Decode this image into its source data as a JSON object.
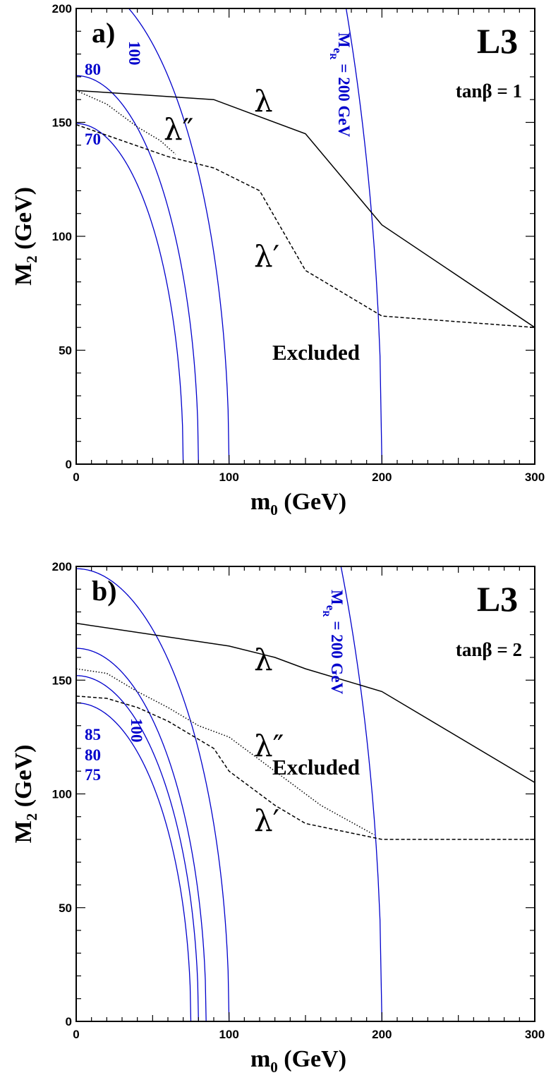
{
  "chart_data": [
    {
      "type": "line",
      "panel_tag": "a)",
      "experiment": "L3",
      "tanbeta_label": "tanβ = 1",
      "xlabel_main": "m",
      "xlabel_sub": "0",
      "xlabel_unit": " (GeV)",
      "ylabel_main": "M",
      "ylabel_sub": "2",
      "ylabel_unit": " (GeV)",
      "xlim": [
        0,
        300
      ],
      "ylim": [
        0,
        200
      ],
      "xticks": [
        0,
        100,
        200,
        300
      ],
      "yticks": [
        0,
        50,
        100,
        150,
        200
      ],
      "region_label": "Excluded",
      "limit_curves": [
        {
          "name": "λ",
          "style": "solid",
          "x": [
            0,
            90,
            150,
            200,
            300
          ],
          "y": [
            164,
            160,
            145,
            105,
            60
          ]
        },
        {
          "name": "λ′",
          "style": "dashed",
          "x": [
            0,
            30,
            60,
            90,
            120,
            150,
            200,
            300
          ],
          "y": [
            149,
            142,
            135,
            130,
            120,
            85,
            65,
            60
          ]
        },
        {
          "name": "λ″",
          "style": "dotted",
          "x": [
            0,
            20,
            40,
            55,
            65
          ],
          "y": [
            164,
            158,
            148,
            142,
            136
          ]
        }
      ],
      "selectron_mass_contours": [
        {
          "value": 70,
          "label": "70",
          "y0": 149.5
        },
        {
          "value": 80,
          "label": "80",
          "y0": 170.5
        },
        {
          "value": 100,
          "label": "100",
          "y0": 213
        },
        {
          "value": 200,
          "label_main": "M",
          "label_sub": "e",
          "label_subsub": "R",
          "label_rest": " = 200 GeV",
          "y0": 426
        }
      ]
    },
    {
      "type": "line",
      "panel_tag": "b)",
      "experiment": "L3",
      "tanbeta_label": "tanβ = 2",
      "xlabel_main": "m",
      "xlabel_sub": "0",
      "xlabel_unit": " (GeV)",
      "ylabel_main": "M",
      "ylabel_sub": "2",
      "ylabel_unit": " (GeV)",
      "xlim": [
        0,
        300
      ],
      "ylim": [
        0,
        200
      ],
      "xticks": [
        0,
        100,
        200,
        300
      ],
      "yticks": [
        0,
        50,
        100,
        150,
        200
      ],
      "region_label": "Excluded",
      "limit_curves": [
        {
          "name": "λ",
          "style": "solid",
          "x": [
            0,
            100,
            130,
            150,
            200,
            300
          ],
          "y": [
            175,
            165,
            160,
            155,
            145,
            105
          ]
        },
        {
          "name": "λ′",
          "style": "dashed",
          "x": [
            0,
            20,
            40,
            60,
            90,
            100,
            130,
            150,
            200,
            300
          ],
          "y": [
            143,
            142,
            138,
            132,
            120,
            110,
            95,
            87,
            80,
            80
          ]
        },
        {
          "name": "λ″",
          "style": "dotted",
          "x": [
            0,
            20,
            40,
            60,
            80,
            100,
            130,
            160,
            195
          ],
          "y": [
            155,
            153,
            145,
            138,
            130,
            125,
            110,
            95,
            82
          ]
        }
      ],
      "selectron_mass_contours": [
        {
          "value": 75,
          "label": "75",
          "y0": 140
        },
        {
          "value": 80,
          "label": "80",
          "y0": 152
        },
        {
          "value": 85,
          "label": "85",
          "y0": 164
        },
        {
          "value": 100,
          "label": "100",
          "y0": 199
        },
        {
          "value": 200,
          "label_main": "M",
          "label_sub": "e",
          "label_subsub": "R",
          "label_rest": " = 200 GeV",
          "y0": 400
        }
      ]
    }
  ]
}
